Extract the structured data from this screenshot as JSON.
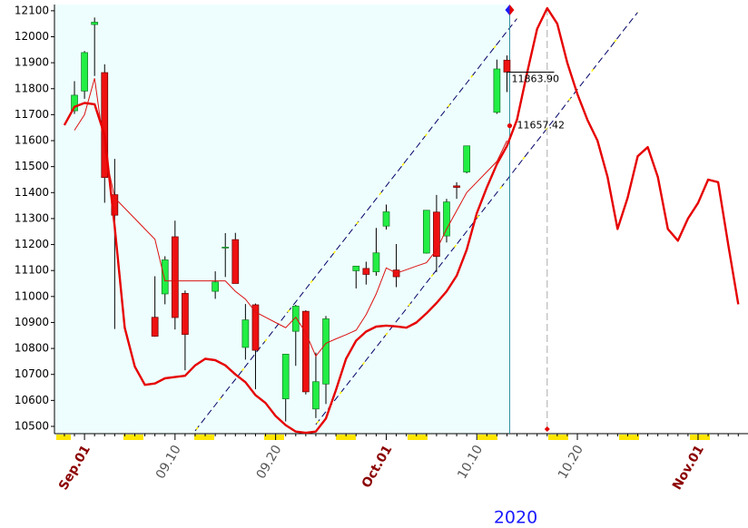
{
  "chart_data": {
    "type": "candlestick",
    "year_label": "2020",
    "categories": [
      null,
      null,
      "Sep.01",
      null,
      null,
      null,
      null,
      null,
      null,
      null,
      null,
      "09.10",
      null,
      null,
      null,
      null,
      null,
      null,
      null,
      null,
      null,
      "09.20",
      null,
      null,
      null,
      null,
      null,
      null,
      null,
      null,
      null,
      null,
      "Oct.01",
      null,
      null,
      null,
      null,
      null,
      null,
      null,
      null,
      "10.10",
      null,
      null,
      null,
      null,
      null,
      null,
      null,
      null,
      null,
      "10.20",
      null,
      null,
      null,
      null,
      null,
      null,
      null,
      null,
      null,
      null,
      null,
      "Nov.01",
      null,
      null,
      null,
      null
    ],
    "major_label_color": "#8b0000",
    "minor_label_color": "#555555",
    "ylim": [
      10472,
      12124
    ],
    "yticks": [
      10500,
      10600,
      10700,
      10800,
      10900,
      11000,
      11100,
      11200,
      11300,
      11400,
      11500,
      11600,
      11700,
      11800,
      11900,
      12000,
      12100
    ],
    "candles": {
      "up_color": "#22ee44",
      "down_color": "#ee1111",
      "open": [
        null,
        11715,
        11791,
        12047,
        11862,
        11392,
        null,
        null,
        null,
        10920,
        11010,
        11230,
        11012,
        null,
        null,
        11020,
        11189,
        11219,
        10804,
        10968,
        null,
        null,
        10606,
        10866,
        10943,
        10567,
        10663,
        null,
        null,
        11099,
        11108,
        11095,
        11271,
        11102,
        null,
        null,
        11167,
        11325,
        11233,
        11426,
        11479,
        null,
        null,
        11709,
        11910,
        null,
        null,
        null,
        null,
        null,
        null,
        null,
        null,
        null,
        null,
        null,
        null,
        null,
        null,
        null,
        null,
        null,
        null,
        null,
        null,
        null,
        null,
        null
      ],
      "high": [
        null,
        11829,
        11945,
        12074,
        11894,
        11530,
        null,
        null,
        null,
        11078,
        11155,
        11292,
        11023,
        null,
        null,
        11097,
        11244,
        11245,
        10971,
        10973,
        null,
        null,
        10779,
        10968,
        10947,
        10784,
        10925,
        null,
        null,
        11118,
        11134,
        11264,
        11354,
        11202,
        null,
        null,
        11332,
        11391,
        11376,
        11440,
        11580,
        null,
        null,
        11912,
        11928,
        null,
        null,
        null,
        null,
        null,
        null,
        null,
        null,
        null,
        null,
        null,
        null,
        null,
        null,
        null,
        null,
        null,
        null,
        null,
        null,
        null,
        null,
        null
      ],
      "low": [
        null,
        11703,
        11761,
        11849,
        11361,
        10875,
        null,
        null,
        null,
        10845,
        10970,
        10873,
        10716,
        null,
        null,
        10991,
        11075,
        11050,
        10757,
        10643,
        null,
        null,
        10519,
        10733,
        10623,
        10532,
        10586,
        null,
        null,
        11031,
        11046,
        11080,
        11258,
        11036,
        null,
        null,
        11165,
        11094,
        11208,
        11376,
        11474,
        null,
        null,
        11703,
        11787,
        null,
        null,
        null,
        null,
        null,
        null,
        null,
        null,
        null,
        null,
        null,
        null,
        null,
        null,
        null,
        null,
        null,
        null,
        null,
        null,
        null,
        null,
        null
      ],
      "close": [
        null,
        11775,
        11939,
        12056,
        11458,
        11313,
        null,
        null,
        null,
        10847,
        11141,
        10919,
        10854,
        null,
        null,
        11056,
        11190,
        11050,
        10910,
        10793,
        null,
        null,
        10778,
        10963,
        10633,
        10672,
        10914,
        null,
        null,
        11117,
        11085,
        11168,
        11326,
        11076,
        null,
        null,
        11332,
        11154,
        11364,
        11420,
        11580,
        null,
        null,
        11876,
        11863.9,
        null,
        null,
        null,
        null,
        null,
        null,
        null,
        null,
        null,
        null,
        null,
        null,
        null,
        null,
        null,
        null,
        null,
        null,
        null,
        null,
        null,
        null,
        null
      ],
      "close_labels": [
        null,
        null,
        null,
        null,
        null,
        null,
        null,
        null,
        null,
        null,
        null,
        null,
        null,
        null,
        null,
        null,
        null,
        null,
        null,
        null,
        null,
        null,
        null,
        null,
        null,
        null,
        null,
        null,
        null,
        null,
        null,
        null,
        null,
        null,
        null,
        null,
        null,
        null,
        null,
        null,
        null,
        null,
        null,
        null,
        "11863.90",
        null,
        null,
        null,
        null,
        null,
        null,
        null,
        null,
        null,
        null,
        null,
        null,
        null,
        null,
        null,
        null,
        null,
        null,
        null,
        null,
        null,
        null,
        null
      ]
    },
    "average": {
      "color": "#dd1111",
      "values": [
        null,
        11640,
        11700,
        11840,
        11560,
        11380,
        11340,
        11300,
        11260,
        11220,
        11060,
        11060,
        11060,
        11060,
        11060,
        11060,
        11060,
        11020,
        10990,
        10940,
        10920,
        10900,
        10880,
        10920,
        10860,
        10770,
        10820,
        10837,
        10853,
        10870,
        10930,
        11010,
        11110,
        11090,
        11103,
        11117,
        11130,
        11180,
        11260,
        11330,
        11400,
        11440,
        11480,
        11520,
        11600,
        null,
        null,
        null,
        null,
        null,
        null,
        null,
        null,
        null,
        null,
        null,
        null,
        null,
        null,
        null,
        null,
        null,
        null,
        null,
        null,
        null,
        null,
        null
      ]
    },
    "cycle": {
      "color": "#e60000",
      "values": [
        11660,
        11730,
        11745,
        11740,
        11620,
        11270,
        10880,
        10730,
        10660,
        10665,
        10685,
        10690,
        10695,
        10735,
        10760,
        10755,
        10735,
        10700,
        10670,
        10620,
        10590,
        10540,
        10505,
        10480,
        10475,
        10480,
        10530,
        10640,
        10760,
        10830,
        10865,
        10884,
        10888,
        10885,
        10880,
        10900,
        10935,
        10975,
        11020,
        11080,
        11180,
        11320,
        11420,
        11510,
        11580,
        11680,
        11860,
        12030,
        12110,
        12050,
        11900,
        11780,
        11680,
        11600,
        11460,
        11260,
        11380,
        11540,
        11575,
        11460,
        11260,
        11215,
        11300,
        11360,
        11450,
        11440,
        11200,
        10970
      ]
    },
    "channels": [
      {
        "color": "#000066",
        "values": [
          null,
          null,
          null,
          null,
          null,
          null,
          null,
          null,
          null,
          null,
          null,
          null,
          null,
          10483,
          10533,
          10582,
          10632,
          10681,
          10731,
          10781,
          10830,
          10880,
          10930,
          10979,
          11029,
          11078,
          11128,
          11178,
          11227,
          11277,
          11326,
          11376,
          11426,
          11475,
          11525,
          11574,
          11624,
          11674,
          11723,
          11773,
          11822,
          11872,
          11922,
          11971,
          12021,
          12070,
          null,
          null,
          null,
          null,
          null,
          null,
          null,
          null,
          null,
          null,
          null,
          null,
          null,
          null,
          null,
          null,
          null,
          null,
          null,
          null,
          null,
          null
        ]
      },
      {
        "color": "#000066",
        "values": [
          null,
          null,
          null,
          null,
          null,
          null,
          null,
          null,
          null,
          null,
          null,
          null,
          null,
          null,
          null,
          null,
          null,
          null,
          null,
          null,
          null,
          null,
          null,
          null,
          null,
          10507,
          10557,
          10606,
          10656,
          10705,
          10755,
          10805,
          10854,
          10904,
          10953,
          11003,
          11053,
          11102,
          11152,
          11201,
          11251,
          11301,
          11350,
          11400,
          11449,
          11499,
          11549,
          11598,
          11648,
          11697,
          11747,
          11797,
          11846,
          11896,
          11945,
          11995,
          12045,
          12094,
          null,
          null,
          null,
          null,
          null,
          null,
          null,
          null,
          null,
          null
        ]
      }
    ],
    "marker": {
      "value": 11657.42,
      "label": "11657.42",
      "color": "#e60000"
    }
  }
}
